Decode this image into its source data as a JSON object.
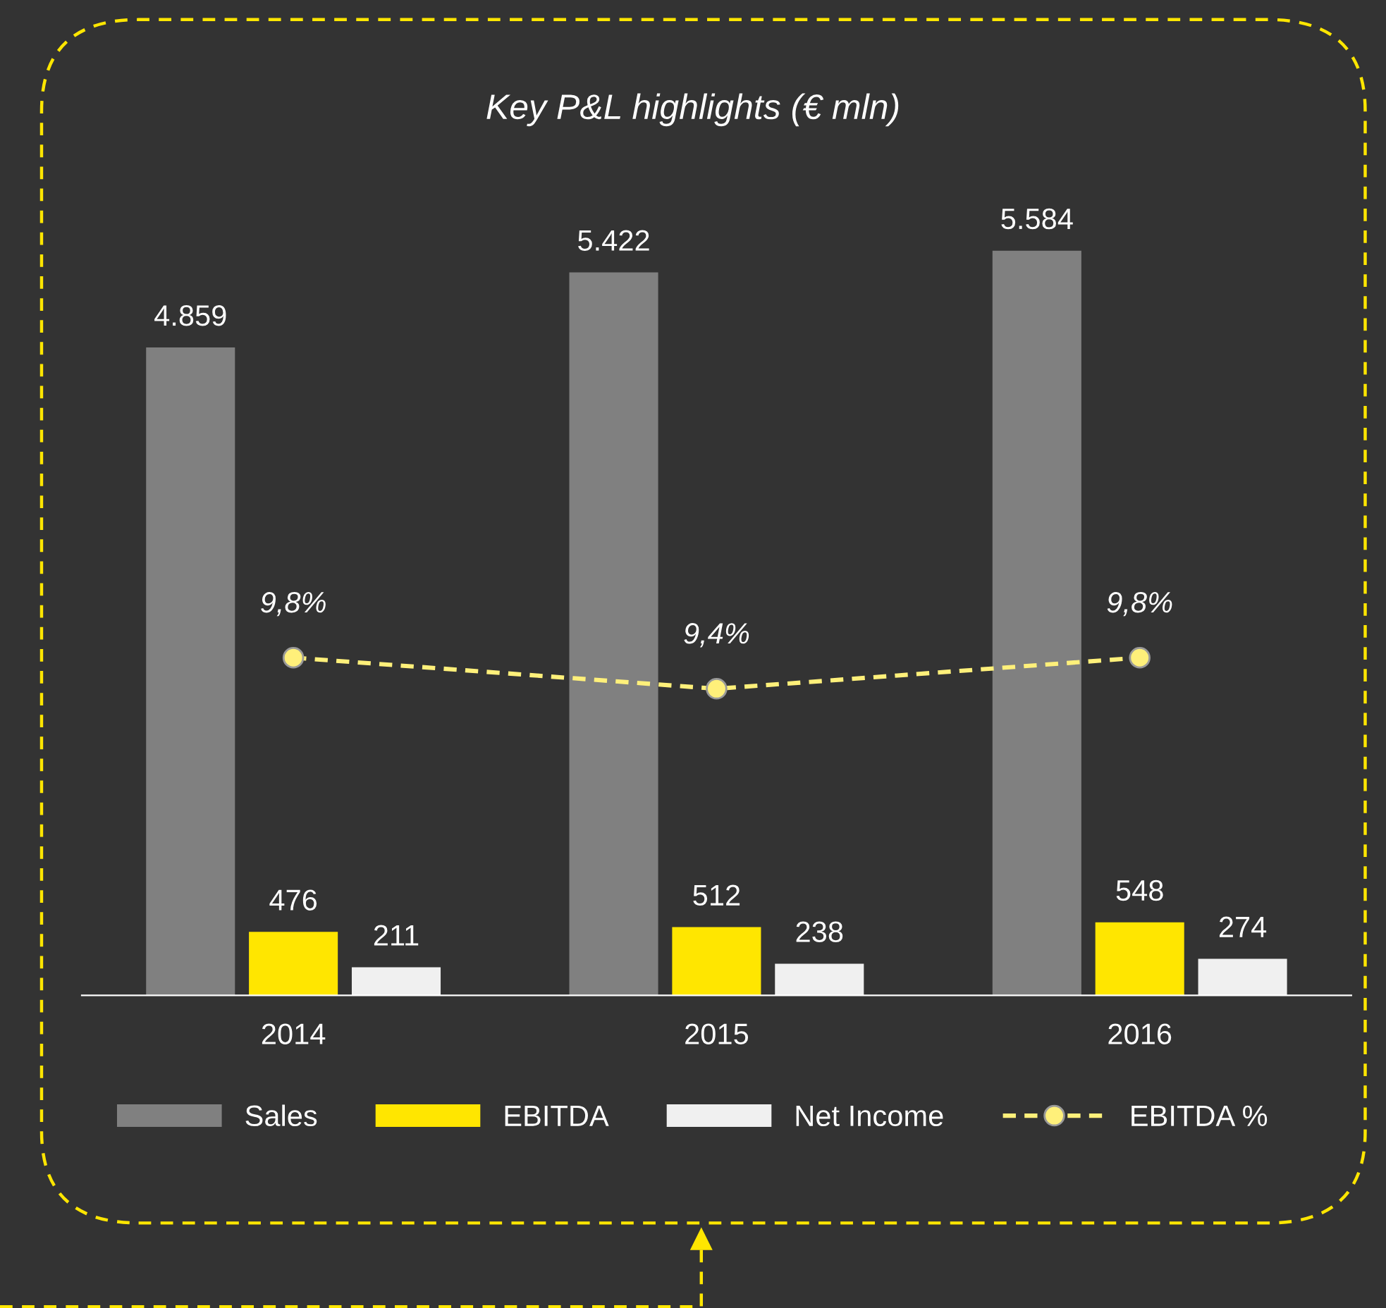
{
  "chart_data": {
    "type": "bar",
    "title": "Key P&L highlights (€ mln)",
    "categories": [
      "2014",
      "2015",
      "2016"
    ],
    "series": [
      {
        "name": "Sales",
        "color": "#808080",
        "values": [
          4859,
          5422,
          5584
        ],
        "value_labels": [
          "4.859",
          "5.422",
          "5.584"
        ]
      },
      {
        "name": "EBITDA",
        "color": "#ffe600",
        "values": [
          476,
          512,
          548
        ],
        "value_labels": [
          "476",
          "512",
          "548"
        ]
      },
      {
        "name": "Net Income",
        "color": "#f0f0f0",
        "values": [
          211,
          238,
          274
        ],
        "value_labels": [
          "211",
          "238",
          "274"
        ]
      },
      {
        "name": "EBITDA %",
        "type": "line",
        "axis": "y2",
        "color": "#fff07a",
        "values": [
          9.8,
          9.4,
          9.8
        ],
        "value_labels": [
          "9,8%",
          "9,4%",
          "9,8%"
        ],
        "marker": "circle",
        "line_style": "dashed"
      }
    ],
    "legend": "bottom",
    "grid": false
  }
}
